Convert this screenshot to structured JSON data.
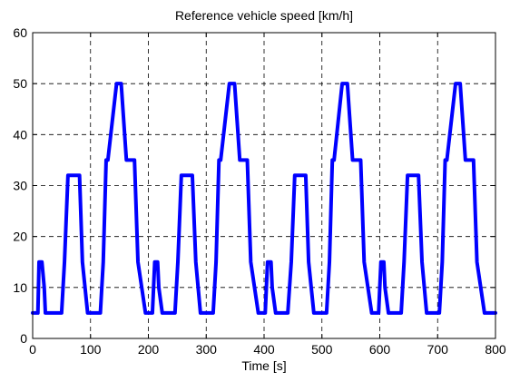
{
  "chart_data": {
    "type": "line",
    "title": "Reference vehicle speed [km/h]",
    "xlabel": "Time [s]",
    "ylabel": "",
    "xlim": [
      0,
      800
    ],
    "ylim": [
      0,
      60
    ],
    "xticks": [
      0,
      100,
      200,
      300,
      400,
      500,
      600,
      700,
      800
    ],
    "yticks": [
      0,
      10,
      20,
      30,
      40,
      50,
      60
    ],
    "grid": true,
    "grid_style": "dashed",
    "line_color": "#0000ff",
    "series": [
      {
        "x": [
          0,
          9,
          11,
          16,
          20,
          22,
          28,
          50,
          55,
          61,
          81,
          86,
          95,
          117,
          122,
          127,
          130,
          145,
          153,
          162,
          176,
          182,
          195,
          205,
          207,
          211,
          216,
          218,
          224,
          246,
          251,
          257,
          276,
          282,
          290,
          312,
          317,
          322,
          325,
          340,
          349,
          358,
          371,
          377,
          390,
          401,
          402,
          406,
          412,
          414,
          420,
          441,
          447,
          453,
          472,
          477,
          486,
          508,
          513,
          518,
          521,
          535,
          544,
          553,
          567,
          573,
          586,
          596,
          598,
          602,
          607,
          609,
          615,
          637,
          642,
          648,
          667,
          673,
          681,
          703,
          708,
          713,
          716,
          731,
          739,
          748,
          762,
          768,
          781,
          800
        ],
        "y": [
          5,
          5,
          15,
          15,
          10,
          5,
          5,
          5,
          15,
          32,
          32,
          15,
          5,
          5,
          15,
          35,
          35,
          50,
          50,
          35,
          35,
          15,
          5,
          5,
          5,
          15,
          15,
          10,
          5,
          5,
          15,
          32,
          32,
          15,
          5,
          5,
          15,
          35,
          35,
          50,
          50,
          35,
          35,
          15,
          5,
          5,
          5,
          15,
          15,
          10,
          5,
          5,
          15,
          32,
          32,
          15,
          5,
          5,
          15,
          35,
          35,
          50,
          50,
          35,
          35,
          15,
          5,
          5,
          5,
          15,
          15,
          10,
          5,
          5,
          15,
          32,
          32,
          15,
          5,
          5,
          15,
          35,
          35,
          50,
          50,
          35,
          35,
          15,
          5,
          5
        ]
      }
    ]
  }
}
